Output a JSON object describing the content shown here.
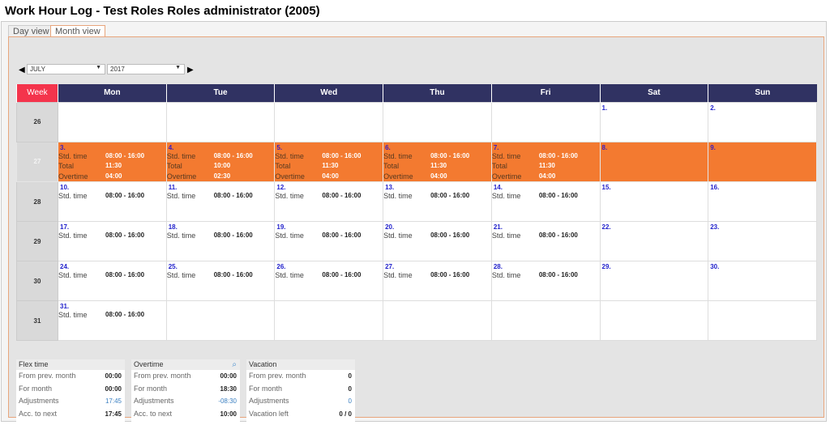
{
  "title": "Work Hour Log - Test Roles Roles administrator (2005)",
  "tabs": [
    {
      "label": "Day view"
    },
    {
      "label": "Month view"
    }
  ],
  "month_select": "JULY",
  "year_select": "2017",
  "calendar": {
    "week_header": "Week",
    "days": [
      "Mon",
      "Tue",
      "Wed",
      "Thu",
      "Fri",
      "Sat",
      "Sun"
    ],
    "labels": {
      "std": "Std. time",
      "total": "Total",
      "overtime": "Overtime"
    },
    "rows": [
      {
        "week": "26",
        "highlight": false,
        "cells": [
          null,
          null,
          null,
          null,
          null,
          {
            "day": "1."
          },
          {
            "day": "2."
          }
        ]
      },
      {
        "week": "27",
        "highlight": true,
        "cells": [
          {
            "day": "3.",
            "std": "08:00 - 16:00",
            "total": "11:30",
            "overtime": "04:00"
          },
          {
            "day": "4.",
            "std": "08:00 - 16:00",
            "total": "10:00",
            "overtime": "02:30"
          },
          {
            "day": "5.",
            "std": "08:00 - 16:00",
            "total": "11:30",
            "overtime": "04:00"
          },
          {
            "day": "6.",
            "std": "08:00 - 16:00",
            "total": "11:30",
            "overtime": "04:00"
          },
          {
            "day": "7.",
            "std": "08:00 - 16:00",
            "total": "11:30",
            "overtime": "04:00"
          },
          {
            "day": "8."
          },
          {
            "day": "9."
          }
        ]
      },
      {
        "week": "28",
        "highlight": false,
        "cells": [
          {
            "day": "10.",
            "std": "08:00 - 16:00"
          },
          {
            "day": "11.",
            "std": "08:00 - 16:00"
          },
          {
            "day": "12.",
            "std": "08:00 - 16:00"
          },
          {
            "day": "13.",
            "std": "08:00 - 16:00"
          },
          {
            "day": "14.",
            "std": "08:00 - 16:00"
          },
          {
            "day": "15."
          },
          {
            "day": "16."
          }
        ]
      },
      {
        "week": "29",
        "highlight": false,
        "cells": [
          {
            "day": "17.",
            "std": "08:00 - 16:00"
          },
          {
            "day": "18.",
            "std": "08:00 - 16:00"
          },
          {
            "day": "19.",
            "std": "08:00 - 16:00"
          },
          {
            "day": "20.",
            "std": "08:00 - 16:00"
          },
          {
            "day": "21.",
            "std": "08:00 - 16:00"
          },
          {
            "day": "22."
          },
          {
            "day": "23."
          }
        ]
      },
      {
        "week": "30",
        "highlight": false,
        "cells": [
          {
            "day": "24.",
            "std": "08:00 - 16:00"
          },
          {
            "day": "25.",
            "std": "08:00 - 16:00"
          },
          {
            "day": "26.",
            "std": "08:00 - 16:00"
          },
          {
            "day": "27.",
            "std": "08:00 - 16:00"
          },
          {
            "day": "28.",
            "std": "08:00 - 16:00"
          },
          {
            "day": "29."
          },
          {
            "day": "30."
          }
        ]
      },
      {
        "week": "31",
        "highlight": false,
        "cells": [
          {
            "day": "31.",
            "std": "08:00 - 16:00"
          },
          null,
          null,
          null,
          null,
          null,
          null
        ]
      }
    ]
  },
  "summary": {
    "flex": {
      "title": "Flex time",
      "rows": [
        {
          "label": "From prev. month",
          "value": "00:00"
        },
        {
          "label": "For month",
          "value": "00:00"
        },
        {
          "label": "Adjustments",
          "value": "17:45",
          "blue": true
        },
        {
          "label": "Acc. to next",
          "value": "17:45"
        }
      ]
    },
    "overtime": {
      "title": "Overtime",
      "icon": "magnifier-icon",
      "rows": [
        {
          "label": "From prev. month",
          "value": "00:00"
        },
        {
          "label": "For month",
          "value": "18:30"
        },
        {
          "label": "Adjustments",
          "value": "-08:30",
          "blue": true
        },
        {
          "label": "Acc. to next",
          "value": "10:00"
        }
      ]
    },
    "vacation": {
      "title": "Vacation",
      "rows": [
        {
          "label": "From prev. month",
          "value": "0"
        },
        {
          "label": "For month",
          "value": "0"
        },
        {
          "label": "Adjustments",
          "value": "0",
          "blue": true
        },
        {
          "label": "Vacation left",
          "value": "0 / 0"
        }
      ]
    }
  },
  "colors": {
    "header": "#303262",
    "week_header": "#f4344c",
    "highlight": "#f37a30",
    "accent_border": "#e8a57c"
  }
}
